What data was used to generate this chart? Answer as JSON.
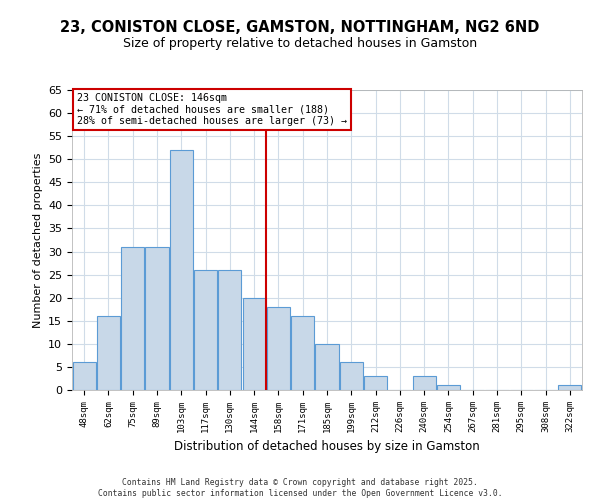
{
  "title": "23, CONISTON CLOSE, GAMSTON, NOTTINGHAM, NG2 6ND",
  "subtitle": "Size of property relative to detached houses in Gamston",
  "xlabel": "Distribution of detached houses by size in Gamston",
  "ylabel": "Number of detached properties",
  "bar_labels": [
    "48sqm",
    "62sqm",
    "75sqm",
    "89sqm",
    "103sqm",
    "117sqm",
    "130sqm",
    "144sqm",
    "158sqm",
    "171sqm",
    "185sqm",
    "199sqm",
    "212sqm",
    "226sqm",
    "240sqm",
    "254sqm",
    "267sqm",
    "281sqm",
    "295sqm",
    "308sqm",
    "322sqm"
  ],
  "bar_values": [
    6,
    16,
    31,
    31,
    52,
    26,
    26,
    20,
    18,
    16,
    10,
    6,
    3,
    0,
    3,
    1,
    0,
    0,
    0,
    0,
    1
  ],
  "bar_color": "#c8d8e8",
  "bar_edge_color": "#5b9bd5",
  "vline_x_idx": 7.5,
  "vline_color": "#cc0000",
  "ylim": [
    0,
    65
  ],
  "yticks": [
    0,
    5,
    10,
    15,
    20,
    25,
    30,
    35,
    40,
    45,
    50,
    55,
    60,
    65
  ],
  "annot_line1": "23 CONISTON CLOSE: 146sqm",
  "annot_line2": "← 71% of detached houses are smaller (188)",
  "annot_line3": "28% of semi-detached houses are larger (73) →",
  "annotation_box_color": "#ffffff",
  "annotation_box_edge": "#cc0000",
  "footer_line1": "Contains HM Land Registry data © Crown copyright and database right 2025.",
  "footer_line2": "Contains public sector information licensed under the Open Government Licence v3.0.",
  "bg_color": "#ffffff",
  "grid_color": "#d0dce8"
}
